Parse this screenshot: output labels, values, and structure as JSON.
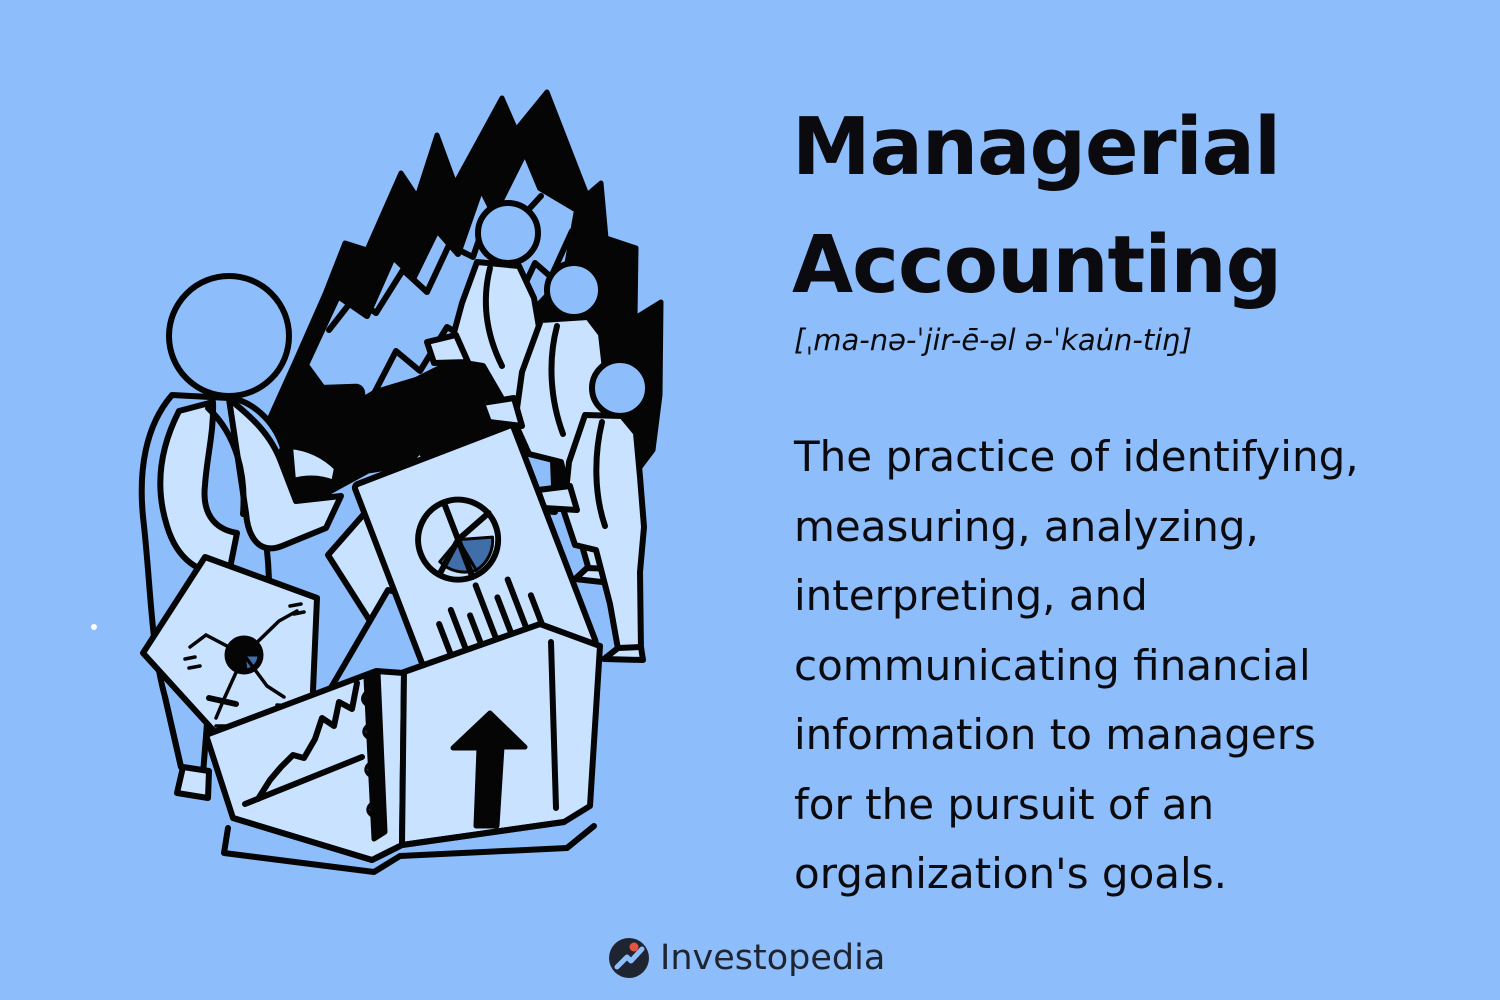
{
  "page": {
    "background_color": "#8dbdfa",
    "text_color": "#0b0b0f",
    "ink_color": "#050505",
    "light_fill_color": "#c9e2ff",
    "mid_fill_color": "#3f6ea8"
  },
  "title": {
    "line1": "Managerial",
    "line2": "Accounting"
  },
  "pronunciation": "[ˌma-nə-ˈjir-ē-əl ə-ˈkau̇n-tiŋ]",
  "definition": {
    "lines": [
      "The practice of identifying,",
      "measuring, analyzing,",
      "interpreting, and",
      "communicating financial",
      "information to managers",
      "for the pursuit of an",
      "organization's goals."
    ]
  },
  "brand": {
    "name": "Investopedia",
    "logo_icon": "investopedia-logo-icon",
    "logo_color": "#1f2431"
  },
  "illustration": {
    "icon": "business-team-meeting-illustration"
  }
}
